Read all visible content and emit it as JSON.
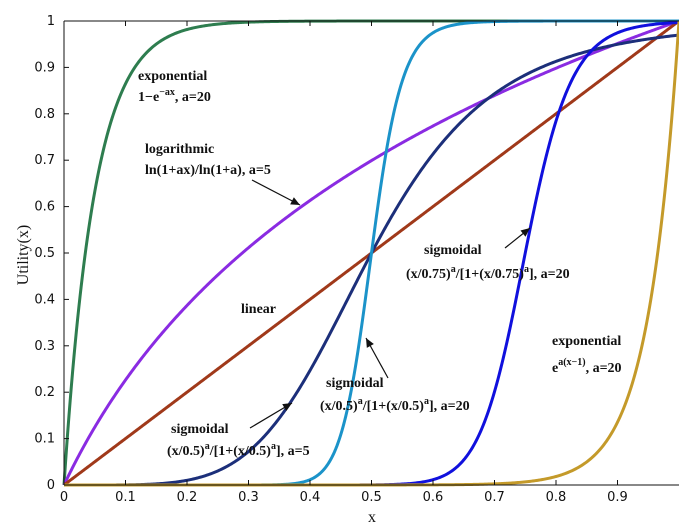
{
  "chart_data": {
    "type": "line",
    "xlabel": "x",
    "ylabel": "Utility(x)",
    "xlim": [
      0,
      1
    ],
    "ylim": [
      0,
      1
    ],
    "x_ticks": [
      "0",
      "0.1",
      "0.2",
      "0.3",
      "0.4",
      "0.5",
      "0.6",
      "0.7",
      "0.8",
      "0.9"
    ],
    "y_ticks": [
      "0",
      "0.1",
      "0.2",
      "0.3",
      "0.4",
      "0.5",
      "0.6",
      "0.7",
      "0.8",
      "0.9",
      "1"
    ],
    "grid": false,
    "series": [
      {
        "key": "exp_rise",
        "color": "#2e7d4f",
        "kind": "exp_rise",
        "a": 20
      },
      {
        "key": "log",
        "color": "#8a2be2",
        "kind": "log",
        "a": 5
      },
      {
        "key": "linear",
        "color": "#a0391a",
        "kind": "linear"
      },
      {
        "key": "sig_c05_a5",
        "color": "#1c2f7a",
        "kind": "sigmoid",
        "c": 0.5,
        "a": 5
      },
      {
        "key": "sig_c05_a20",
        "color": "#1b93c9",
        "kind": "sigmoid",
        "c": 0.5,
        "a": 20
      },
      {
        "key": "sig_c075_a20",
        "color": "#1010dd",
        "kind": "sigmoid",
        "c": 0.75,
        "a": 20
      },
      {
        "key": "exp_late",
        "color": "#c49a2a",
        "kind": "exp_late",
        "a": 20
      }
    ],
    "annotations": [
      {
        "key": "exp1_title",
        "text": "exponential"
      },
      {
        "key": "exp1_formula",
        "base": "1−e",
        "sup": "−ax",
        "rest": ", a=20"
      },
      {
        "key": "log_title",
        "text": "logarithmic"
      },
      {
        "key": "log_formula",
        "text": "ln(1+ax)/ln(1+a), a=5"
      },
      {
        "key": "linear_label",
        "text": "linear"
      },
      {
        "key": "sig075_title",
        "text": "sigmoidal"
      },
      {
        "key": "sig075_formula",
        "parts": [
          "(x/0.75)",
          "a",
          "/[1+(x/0.75)",
          "a",
          "], a=20"
        ]
      },
      {
        "key": "sig05_20_title",
        "text": "sigmoidal"
      },
      {
        "key": "sig05_20_formula",
        "parts": [
          "(x/0.5)",
          "a",
          "/[1+(x/0.5)",
          "a",
          "], a=20"
        ]
      },
      {
        "key": "sig05_5_title",
        "text": "sigmoidal"
      },
      {
        "key": "sig05_5_formula",
        "parts": [
          "(x/0.5)",
          "a",
          "/[1+(x/0.5)",
          "a",
          "], a=5"
        ]
      },
      {
        "key": "exp2_title",
        "text": "exponential"
      },
      {
        "key": "exp2_formula",
        "base": "e",
        "sup": "a(x−1)",
        "rest": ", a=20"
      }
    ]
  }
}
